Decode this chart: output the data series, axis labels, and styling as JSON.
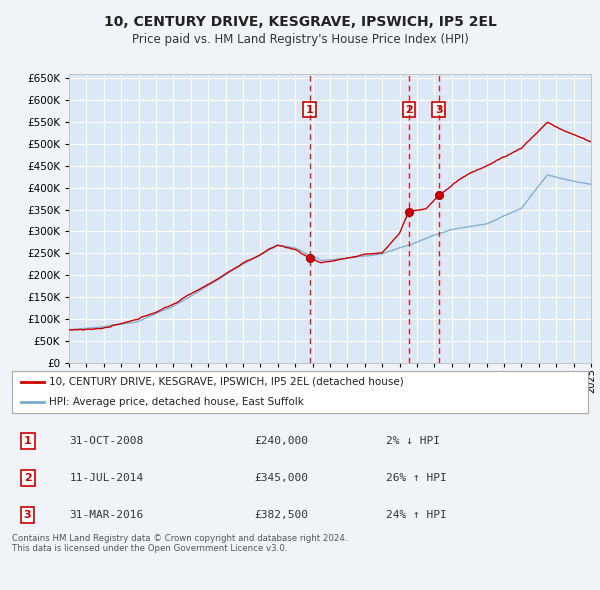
{
  "title": "10, CENTURY DRIVE, KESGRAVE, IPSWICH, IP5 2EL",
  "subtitle": "Price paid vs. HM Land Registry's House Price Index (HPI)",
  "bg_color": "#f0f4f8",
  "plot_bg_color": "#dce8f5",
  "grid_color": "#ffffff",
  "house_color": "#cc0000",
  "hpi_color": "#7aaad0",
  "ylim": [
    0,
    660000
  ],
  "yticks": [
    0,
    50000,
    100000,
    150000,
    200000,
    250000,
    300000,
    350000,
    400000,
    450000,
    500000,
    550000,
    600000,
    650000
  ],
  "legend_house": "10, CENTURY DRIVE, KESGRAVE, IPSWICH, IP5 2EL (detached house)",
  "legend_hpi": "HPI: Average price, detached house, East Suffolk",
  "transactions": [
    {
      "num": 1,
      "date": "31-OCT-2008",
      "price": "£240,000",
      "pct": "2%",
      "dir": "↓",
      "year": 2008.83
    },
    {
      "num": 2,
      "date": "11-JUL-2014",
      "price": "£345,000",
      "pct": "26%",
      "dir": "↑",
      "year": 2014.53
    },
    {
      "num": 3,
      "date": "31-MAR-2016",
      "price": "£382,500",
      "pct": "24%",
      "dir": "↑",
      "year": 2016.25
    }
  ],
  "footer": "Contains HM Land Registry data © Crown copyright and database right 2024.\nThis data is licensed under the Open Government Licence v3.0.",
  "xmin": 1995,
  "xmax": 2025,
  "t1_year": 2008.83,
  "t1_price": 240000,
  "t2_year": 2014.53,
  "t2_price": 345000,
  "t3_year": 2016.25,
  "t3_price": 382500
}
